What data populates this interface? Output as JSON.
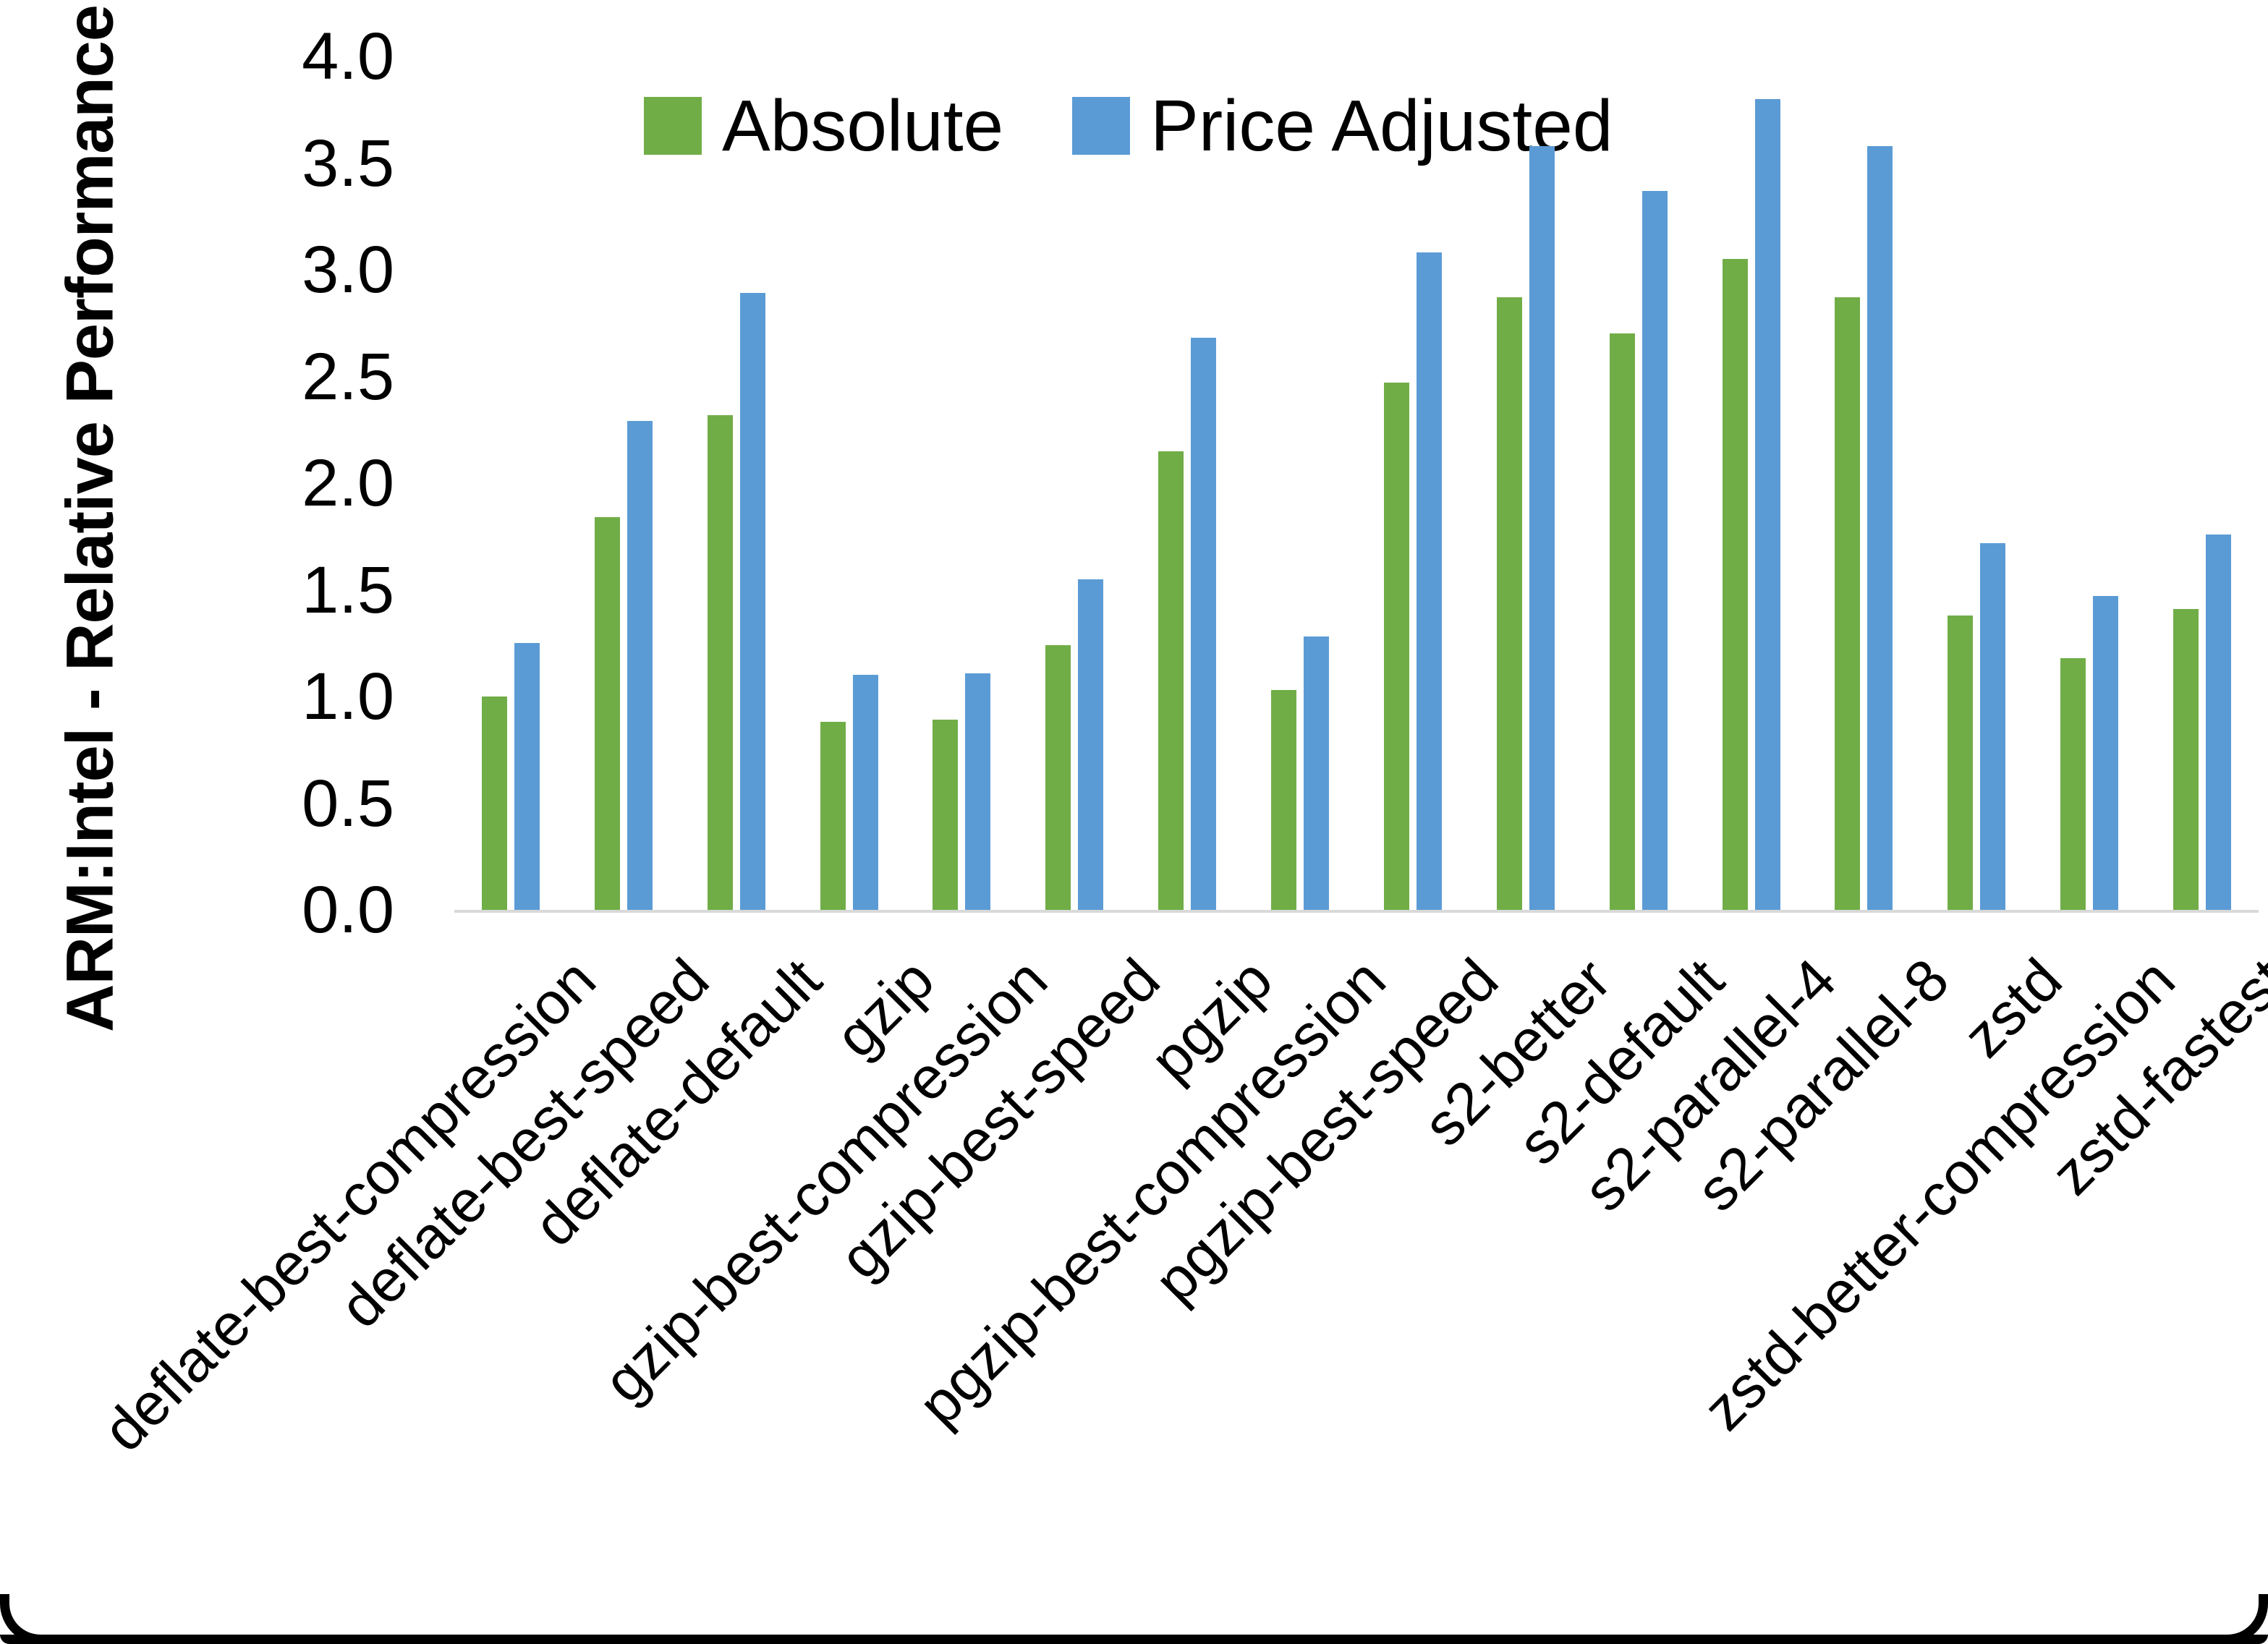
{
  "chart_data": {
    "type": "bar",
    "title": "",
    "xlabel": "",
    "ylabel": "ARM:Intel - Relative Performance",
    "ylim": [
      0.0,
      4.0
    ],
    "ytick_labels": [
      "0.0",
      "0.5",
      "1.0",
      "1.5",
      "2.0",
      "2.5",
      "3.0",
      "3.5",
      "4.0"
    ],
    "grid": false,
    "legend_position": "top-center",
    "categories": [
      "deflate-best-compression",
      "deflate-best-speed",
      "deflate-default",
      "gzip",
      "gzip-best-compression",
      "gzip-best-speed",
      "pgzip",
      "pgzip-best-compression",
      "pgzip-best-speed",
      "s2-better",
      "s2-default",
      "s2-parallel-4",
      "s2-parallel-8",
      "zstd",
      "zstd-better-compression",
      "zstd-fastest"
    ],
    "series": [
      {
        "name": "Absolute",
        "color": "#70AD47",
        "values": [
          1.0,
          1.84,
          2.32,
          0.88,
          0.89,
          1.24,
          2.15,
          1.03,
          2.47,
          2.87,
          2.7,
          3.05,
          2.87,
          1.38,
          1.18,
          1.41
        ]
      },
      {
        "name": "Price Adjusted",
        "color": "#5B9BD5",
        "values": [
          1.25,
          2.29,
          2.89,
          1.1,
          1.11,
          1.55,
          2.68,
          1.28,
          3.08,
          3.58,
          3.37,
          3.8,
          3.58,
          1.72,
          1.47,
          1.76
        ]
      }
    ],
    "colors": {
      "axis_line": "#D9D9D9",
      "text": "#000000",
      "frame_border": "#000000"
    }
  }
}
